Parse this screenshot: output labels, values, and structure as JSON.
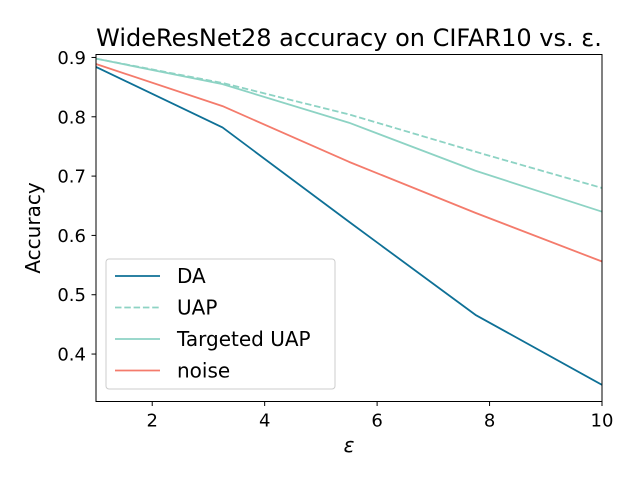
{
  "chart_data": {
    "type": "line",
    "title": "WideResNet28 accuracy on CIFAR10 vs. ε.",
    "xlabel": "ε",
    "ylabel": "Accuracy",
    "xlim": [
      1,
      10
    ],
    "ylim": [
      0.32,
      0.905
    ],
    "xticks": [
      2,
      4,
      6,
      8,
      10
    ],
    "xtick_labels": [
      "2",
      "4",
      "6",
      "8",
      "10"
    ],
    "yticks": [
      0.4,
      0.5,
      0.6,
      0.7,
      0.8,
      0.9
    ],
    "ytick_labels": [
      "0.4",
      "0.5",
      "0.6",
      "0.7",
      "0.8",
      "0.9"
    ],
    "grid": false,
    "legend_position": "lower-left",
    "series": [
      {
        "name": "DA",
        "color": "#0e7096",
        "dash": "solid",
        "x": [
          1,
          3.25,
          5.5,
          7.75,
          10
        ],
        "y": [
          0.884,
          0.782,
          0.623,
          0.466,
          0.348
        ]
      },
      {
        "name": "UAP",
        "color": "#8dd3c4",
        "dash": "dashed",
        "x": [
          1,
          3.25,
          5.5,
          7.75,
          10
        ],
        "y": [
          0.898,
          0.857,
          0.804,
          0.741,
          0.68
        ]
      },
      {
        "name": "Targeted UAP",
        "color": "#8dd3c4",
        "dash": "solid",
        "x": [
          1,
          3.25,
          5.5,
          7.75,
          10
        ],
        "y": [
          0.898,
          0.855,
          0.79,
          0.709,
          0.64
        ]
      },
      {
        "name": "noise",
        "color": "#f47b6c",
        "dash": "solid",
        "x": [
          1,
          3.25,
          5.5,
          7.75,
          10
        ],
        "y": [
          0.889,
          0.818,
          0.724,
          0.638,
          0.556
        ]
      }
    ]
  }
}
